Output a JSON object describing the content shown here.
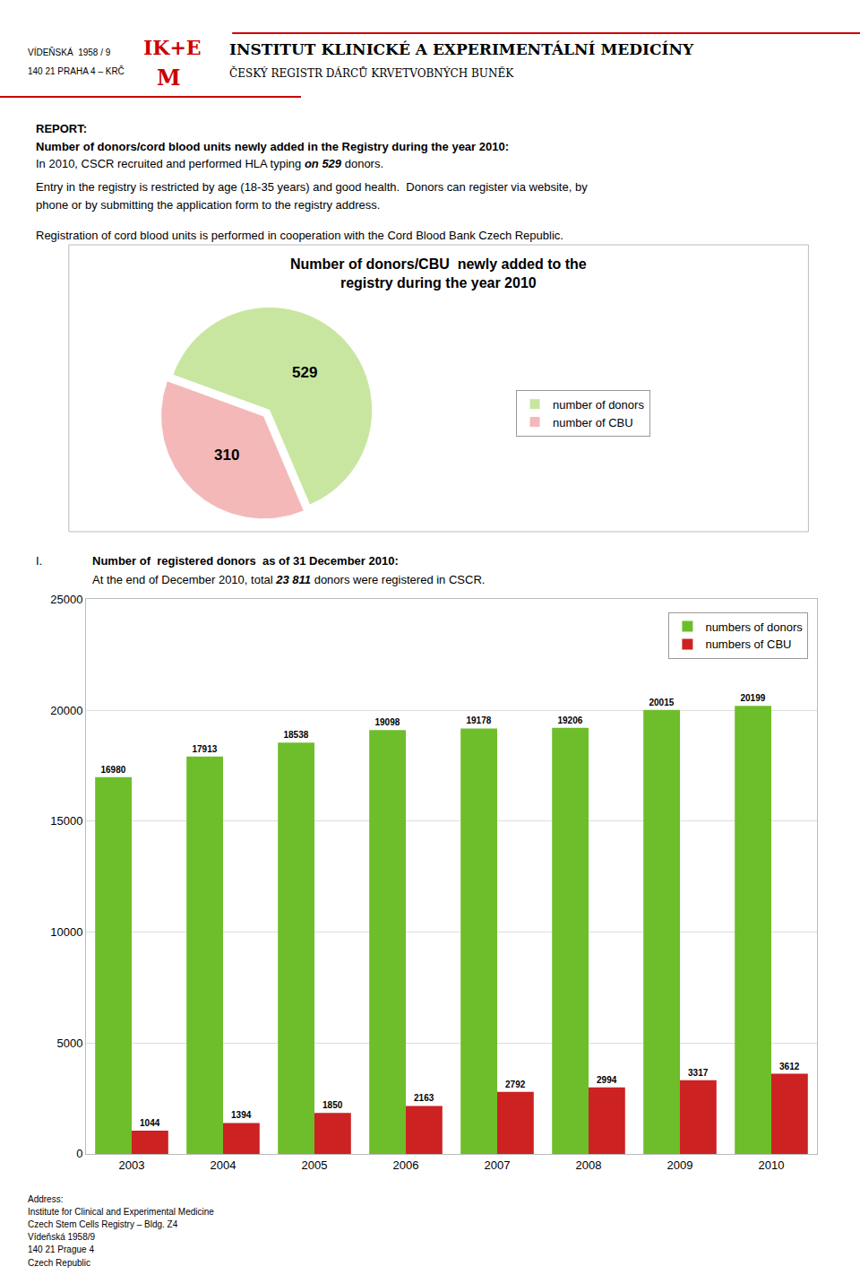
{
  "chart_data": [
    {
      "type": "pie",
      "title": "Number of donors/CBU  newly added to the\nregistry during the year 2010",
      "categories": [
        "number of donors",
        "number of CBU"
      ],
      "values": [
        529,
        310
      ],
      "colors": [
        "#c8e6a0",
        "#f4b8b8"
      ],
      "data_labels": true,
      "legend": "right",
      "annotations": [
        "VÍDEŇSKÁ  1958 / 9",
        "140 21 PRAHA 4 – KRČ",
        "IK",
        "+",
        "E",
        "M",
        "INSTITUT KLINICKÉ A EXPERIMENTÁLNÍ MEDICÍNY",
        "ČESKÝ REGISTR DÁRCŮ KRVETVOBNÝCH BUNĚK",
        "REPORT:",
        "Number of donors/cord blood units newly added in the Registry during the year 2010:",
        "In 2010, CSCR recruited and performed HLA typing ",
        "on 529",
        " donors.",
        "Entry in the registry is restricted by age (18-35 years) and good health.  Donors can register via website, by",
        "phone or by submitting the application form to the registry address.",
        "Registration of cord blood units is performed in cooperation with the Cord Blood Bank Czech Republic."
      ]
    },
    {
      "type": "bar",
      "categories": [
        "2003",
        "2004",
        "2005",
        "2006",
        "2007",
        "2008",
        "2009",
        "2010"
      ],
      "series": [
        {
          "name": "numbers of donors",
          "color": "#6dbe2a",
          "values": [
            16980,
            17913,
            18538,
            19098,
            19178,
            19206,
            20015,
            20199
          ]
        },
        {
          "name": "numbers of CBU",
          "color": "#cc2222",
          "values": [
            1044,
            1394,
            1850,
            2163,
            2792,
            2994,
            3317,
            3612
          ]
        }
      ],
      "ylim": [
        0,
        25000
      ],
      "yticks": [
        0,
        5000,
        10000,
        15000,
        20000,
        25000
      ],
      "grid": true,
      "data_labels": true,
      "legend": "upper right",
      "annotations": [
        "I.",
        "Number of  registered donors  as of 31 December 2010:",
        "At the end of December 2010, total ",
        "23 811",
        " donors were registered in CSCR.",
        "Address:",
        "Institute for Clinical and Experimental Medicine",
        "Czech Stem Cells Registry – Bldg. Z4",
        "Vídeňská 1958/9",
        "140 21 Prague 4",
        "Czech Republic"
      ]
    }
  ]
}
